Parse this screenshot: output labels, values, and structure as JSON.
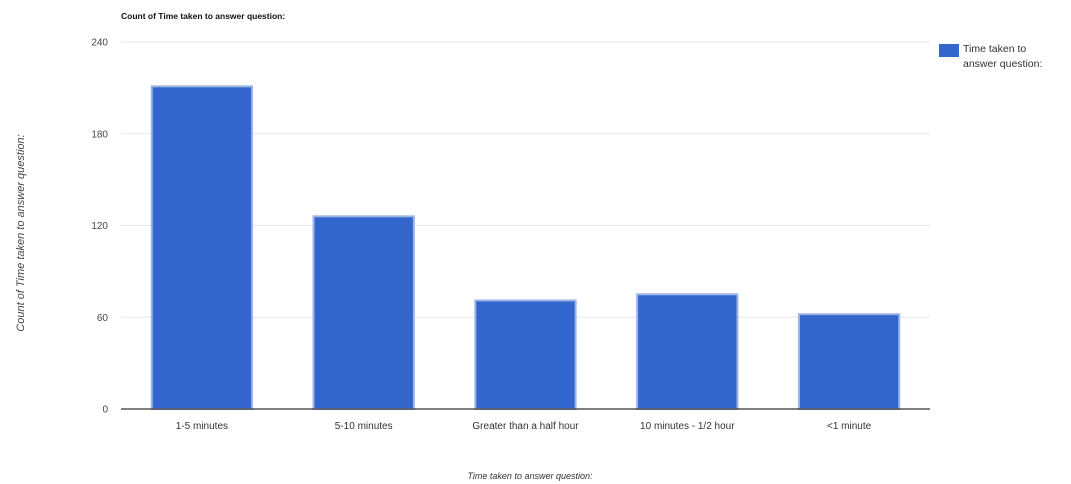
{
  "chart_data": {
    "type": "bar",
    "title": "Count of Time taken to answer question:",
    "xlabel": "Time taken to answer question:",
    "ylabel": "Count of Time taken to answer question:",
    "categories": [
      "1-5 minutes",
      "5-10 minutes",
      "Greater than a half hour",
      "10 minutes - 1/2 hour",
      "<1 minute"
    ],
    "series": [
      {
        "name": "Time taken to answer question:",
        "values": [
          211,
          126,
          71,
          75,
          62
        ]
      }
    ],
    "yticks": [
      "0",
      "60",
      "120",
      "180",
      "240"
    ],
    "ylim": [
      0,
      240
    ],
    "grid": true,
    "legend": "top-right",
    "colors": {
      "bar": "#3366cc",
      "bar_border": "#9db4e6",
      "grid": "#e6e6e6",
      "axis": "#333333"
    }
  }
}
